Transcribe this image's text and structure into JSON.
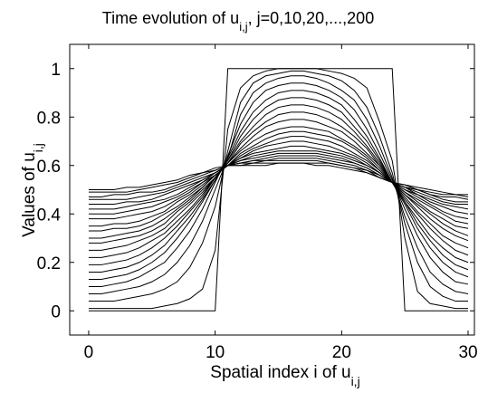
{
  "chart_data": {
    "type": "line",
    "title": {
      "main": "Time evolution of u",
      "sub": "i,j",
      "tail": ", j=0,10,20,...,200"
    },
    "xlabel": {
      "main": "Spatial index i of u",
      "sub": "i,j"
    },
    "ylabel": {
      "main": "Values of u",
      "sub": "i,j"
    },
    "xlim": [
      -1.5,
      30.5
    ],
    "ylim": [
      -0.1,
      1.1
    ],
    "xticks": [
      0,
      10,
      20,
      30
    ],
    "xtick_labels": [
      "0",
      "10",
      "20",
      "30"
    ],
    "yticks": [
      0,
      0.2,
      0.4,
      0.6,
      0.8,
      1
    ],
    "ytick_labels": [
      "0",
      "0.2",
      "0.4",
      "0.6",
      "0.8",
      "1"
    ],
    "grid": false,
    "legend": "none",
    "line_color": "#000000",
    "x": [
      0,
      1,
      2,
      3,
      4,
      5,
      6,
      7,
      8,
      9,
      10,
      11,
      12,
      13,
      14,
      15,
      16,
      17,
      18,
      19,
      20,
      21,
      22,
      23,
      24,
      25,
      26,
      27,
      28,
      29,
      30
    ],
    "series": [
      {
        "values": [
          0,
          0,
          0,
          0,
          0,
          0,
          0,
          0,
          0,
          0,
          0,
          1,
          1,
          1,
          1,
          1,
          1,
          1,
          1,
          1,
          1,
          1,
          1,
          1,
          1,
          0,
          0,
          0,
          0,
          0,
          0
        ]
      },
      {
        "values": [
          0.01,
          0.01,
          0.01,
          0.01,
          0.01,
          0.01,
          0.02,
          0.03,
          0.05,
          0.09,
          0.25,
          0.75,
          0.92,
          0.97,
          0.99,
          1,
          1,
          1,
          1,
          0.99,
          0.98,
          0.96,
          0.92,
          0.78,
          0.62,
          0.3,
          0.08,
          0.03,
          0.02,
          0.01,
          0.01
        ]
      },
      {
        "values": [
          0.04,
          0.04,
          0.04,
          0.05,
          0.06,
          0.07,
          0.09,
          0.12,
          0.18,
          0.28,
          0.43,
          0.66,
          0.86,
          0.94,
          0.97,
          0.98,
          0.99,
          0.99,
          0.98,
          0.97,
          0.95,
          0.91,
          0.84,
          0.72,
          0.57,
          0.36,
          0.2,
          0.1,
          0.06,
          0.04,
          0.04
        ]
      },
      {
        "values": [
          0.07,
          0.07,
          0.08,
          0.09,
          0.1,
          0.12,
          0.15,
          0.2,
          0.27,
          0.37,
          0.5,
          0.63,
          0.81,
          0.9,
          0.94,
          0.96,
          0.97,
          0.97,
          0.96,
          0.94,
          0.91,
          0.87,
          0.79,
          0.68,
          0.55,
          0.39,
          0.26,
          0.16,
          0.11,
          0.08,
          0.07
        ]
      },
      {
        "values": [
          0.1,
          0.1,
          0.11,
          0.12,
          0.14,
          0.17,
          0.2,
          0.26,
          0.33,
          0.42,
          0.53,
          0.64,
          0.77,
          0.86,
          0.91,
          0.93,
          0.94,
          0.94,
          0.93,
          0.91,
          0.88,
          0.83,
          0.75,
          0.65,
          0.54,
          0.42,
          0.31,
          0.22,
          0.16,
          0.12,
          0.11
        ]
      },
      {
        "values": [
          0.13,
          0.13,
          0.14,
          0.15,
          0.17,
          0.2,
          0.24,
          0.3,
          0.37,
          0.45,
          0.54,
          0.63,
          0.74,
          0.82,
          0.87,
          0.9,
          0.91,
          0.91,
          0.9,
          0.88,
          0.85,
          0.79,
          0.72,
          0.63,
          0.53,
          0.44,
          0.34,
          0.26,
          0.2,
          0.16,
          0.14
        ]
      },
      {
        "values": [
          0.16,
          0.16,
          0.17,
          0.18,
          0.2,
          0.23,
          0.27,
          0.33,
          0.39,
          0.46,
          0.54,
          0.62,
          0.72,
          0.79,
          0.84,
          0.87,
          0.88,
          0.88,
          0.87,
          0.85,
          0.82,
          0.76,
          0.7,
          0.62,
          0.53,
          0.45,
          0.36,
          0.29,
          0.23,
          0.19,
          0.17
        ]
      },
      {
        "values": [
          0.19,
          0.19,
          0.2,
          0.21,
          0.23,
          0.26,
          0.3,
          0.35,
          0.41,
          0.47,
          0.55,
          0.62,
          0.7,
          0.76,
          0.81,
          0.84,
          0.85,
          0.85,
          0.84,
          0.82,
          0.79,
          0.74,
          0.68,
          0.61,
          0.53,
          0.45,
          0.38,
          0.31,
          0.26,
          0.22,
          0.2
        ]
      },
      {
        "values": [
          0.22,
          0.22,
          0.23,
          0.24,
          0.26,
          0.29,
          0.32,
          0.37,
          0.42,
          0.48,
          0.55,
          0.61,
          0.69,
          0.74,
          0.78,
          0.81,
          0.82,
          0.82,
          0.81,
          0.79,
          0.76,
          0.72,
          0.67,
          0.6,
          0.53,
          0.46,
          0.4,
          0.34,
          0.29,
          0.25,
          0.23
        ]
      },
      {
        "values": [
          0.25,
          0.25,
          0.26,
          0.27,
          0.29,
          0.31,
          0.34,
          0.39,
          0.44,
          0.49,
          0.55,
          0.61,
          0.67,
          0.72,
          0.76,
          0.78,
          0.79,
          0.79,
          0.78,
          0.76,
          0.74,
          0.7,
          0.65,
          0.6,
          0.53,
          0.47,
          0.41,
          0.36,
          0.31,
          0.28,
          0.26
        ]
      },
      {
        "values": [
          0.28,
          0.28,
          0.29,
          0.3,
          0.31,
          0.33,
          0.36,
          0.41,
          0.45,
          0.5,
          0.55,
          0.61,
          0.66,
          0.7,
          0.73,
          0.75,
          0.76,
          0.76,
          0.75,
          0.74,
          0.71,
          0.68,
          0.64,
          0.59,
          0.53,
          0.48,
          0.43,
          0.38,
          0.34,
          0.31,
          0.29
        ]
      },
      {
        "values": [
          0.3,
          0.3,
          0.31,
          0.32,
          0.33,
          0.35,
          0.38,
          0.42,
          0.46,
          0.51,
          0.56,
          0.6,
          0.65,
          0.68,
          0.71,
          0.73,
          0.74,
          0.74,
          0.73,
          0.72,
          0.7,
          0.67,
          0.63,
          0.58,
          0.53,
          0.48,
          0.44,
          0.4,
          0.36,
          0.33,
          0.31
        ]
      },
      {
        "values": [
          0.33,
          0.33,
          0.34,
          0.34,
          0.35,
          0.37,
          0.4,
          0.43,
          0.47,
          0.51,
          0.56,
          0.6,
          0.64,
          0.67,
          0.69,
          0.71,
          0.72,
          0.72,
          0.71,
          0.7,
          0.68,
          0.65,
          0.62,
          0.58,
          0.53,
          0.49,
          0.45,
          0.41,
          0.38,
          0.35,
          0.34
        ]
      },
      {
        "values": [
          0.35,
          0.35,
          0.36,
          0.36,
          0.37,
          0.39,
          0.41,
          0.45,
          0.48,
          0.52,
          0.56,
          0.6,
          0.63,
          0.66,
          0.68,
          0.69,
          0.7,
          0.7,
          0.69,
          0.68,
          0.66,
          0.64,
          0.61,
          0.57,
          0.53,
          0.49,
          0.46,
          0.43,
          0.4,
          0.37,
          0.36
        ]
      },
      {
        "values": [
          0.38,
          0.38,
          0.38,
          0.39,
          0.4,
          0.41,
          0.43,
          0.46,
          0.49,
          0.53,
          0.56,
          0.6,
          0.63,
          0.65,
          0.66,
          0.67,
          0.68,
          0.68,
          0.67,
          0.66,
          0.65,
          0.63,
          0.6,
          0.57,
          0.53,
          0.5,
          0.47,
          0.44,
          0.41,
          0.39,
          0.38
        ]
      },
      {
        "values": [
          0.4,
          0.4,
          0.4,
          0.41,
          0.42,
          0.43,
          0.45,
          0.47,
          0.5,
          0.53,
          0.57,
          0.6,
          0.62,
          0.64,
          0.65,
          0.66,
          0.66,
          0.66,
          0.66,
          0.65,
          0.64,
          0.62,
          0.6,
          0.57,
          0.53,
          0.5,
          0.48,
          0.45,
          0.43,
          0.41,
          0.4
        ]
      },
      {
        "values": [
          0.42,
          0.42,
          0.42,
          0.43,
          0.44,
          0.45,
          0.46,
          0.48,
          0.51,
          0.54,
          0.57,
          0.6,
          0.62,
          0.63,
          0.64,
          0.65,
          0.65,
          0.65,
          0.65,
          0.64,
          0.63,
          0.61,
          0.59,
          0.56,
          0.53,
          0.51,
          0.48,
          0.46,
          0.44,
          0.43,
          0.42
        ]
      },
      {
        "values": [
          0.44,
          0.44,
          0.44,
          0.45,
          0.45,
          0.46,
          0.48,
          0.5,
          0.52,
          0.54,
          0.57,
          0.6,
          0.61,
          0.62,
          0.63,
          0.64,
          0.64,
          0.64,
          0.64,
          0.63,
          0.62,
          0.61,
          0.59,
          0.56,
          0.53,
          0.51,
          0.49,
          0.47,
          0.45,
          0.44,
          0.44
        ]
      },
      {
        "values": [
          0.46,
          0.46,
          0.46,
          0.46,
          0.47,
          0.48,
          0.49,
          0.51,
          0.53,
          0.55,
          0.57,
          0.6,
          0.61,
          0.62,
          0.62,
          0.63,
          0.63,
          0.63,
          0.63,
          0.62,
          0.61,
          0.6,
          0.58,
          0.56,
          0.53,
          0.51,
          0.5,
          0.48,
          0.46,
          0.45,
          0.45
        ]
      },
      {
        "values": [
          0.47,
          0.47,
          0.48,
          0.48,
          0.49,
          0.49,
          0.5,
          0.52,
          0.54,
          0.56,
          0.58,
          0.6,
          0.61,
          0.61,
          0.62,
          0.62,
          0.62,
          0.62,
          0.62,
          0.61,
          0.6,
          0.59,
          0.58,
          0.55,
          0.53,
          0.51,
          0.5,
          0.48,
          0.47,
          0.47,
          0.46
        ]
      },
      {
        "values": [
          0.49,
          0.49,
          0.49,
          0.49,
          0.5,
          0.51,
          0.52,
          0.53,
          0.55,
          0.57,
          0.58,
          0.6,
          0.6,
          0.61,
          0.61,
          0.61,
          0.61,
          0.61,
          0.61,
          0.61,
          0.6,
          0.59,
          0.57,
          0.55,
          0.53,
          0.52,
          0.5,
          0.49,
          0.48,
          0.48,
          0.47
        ]
      },
      {
        "values": [
          0.5,
          0.5,
          0.5,
          0.51,
          0.51,
          0.52,
          0.53,
          0.54,
          0.56,
          0.57,
          0.59,
          0.6,
          0.6,
          0.6,
          0.6,
          0.61,
          0.61,
          0.61,
          0.6,
          0.6,
          0.59,
          0.58,
          0.57,
          0.55,
          0.53,
          0.52,
          0.51,
          0.5,
          0.49,
          0.48,
          0.48
        ]
      }
    ]
  }
}
